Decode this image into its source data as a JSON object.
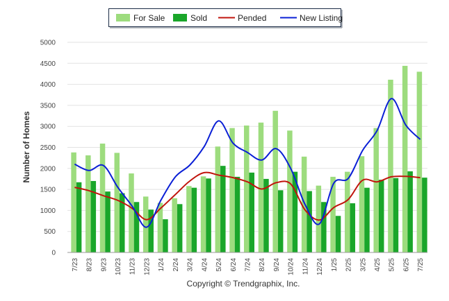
{
  "chart_data": {
    "type": "bar",
    "title": "",
    "xlabel": "",
    "ylabel": "Number of Homes",
    "ylim": [
      0,
      5000
    ],
    "yticks": [
      0,
      500,
      1000,
      1500,
      2000,
      2500,
      3000,
      3500,
      4000,
      4500,
      5000
    ],
    "grid": true,
    "legend_position": "top-center",
    "categories": [
      "7/23",
      "8/23",
      "9/23",
      "10/23",
      "11/23",
      "12/23",
      "1/24",
      "2/24",
      "3/24",
      "4/24",
      "5/24",
      "6/24",
      "7/24",
      "8/24",
      "9/24",
      "10/24",
      "11/24",
      "12/24",
      "1/25",
      "2/25",
      "3/25",
      "4/25",
      "5/25",
      "6/25",
      "7/25"
    ],
    "series": [
      {
        "name": "For Sale",
        "kind": "bar",
        "color": "#9ddc7e",
        "values": [
          2380,
          2310,
          2590,
          2370,
          1880,
          1330,
          1180,
          1290,
          1580,
          1810,
          2520,
          2960,
          3020,
          3090,
          3370,
          2900,
          2280,
          1590,
          1800,
          1920,
          2290,
          2960,
          4110,
          4440,
          4300
        ]
      },
      {
        "name": "Sold",
        "kind": "bar",
        "color": "#1aa62a",
        "values": [
          1670,
          1700,
          1450,
          1410,
          1200,
          1020,
          790,
          1150,
          1540,
          1760,
          2060,
          1800,
          1900,
          1750,
          1480,
          1920,
          1460,
          1200,
          870,
          1170,
          1540,
          1730,
          1770,
          1930,
          1780
        ]
      },
      {
        "name": "Pended",
        "kind": "line",
        "color": "#c0140c",
        "values": [
          1550,
          1470,
          1350,
          1240,
          1050,
          780,
          1060,
          1380,
          1700,
          1900,
          1840,
          1780,
          1680,
          1510,
          1660,
          1630,
          1010,
          770,
          1070,
          1260,
          1720,
          1680,
          1800,
          1810,
          1780
        ]
      },
      {
        "name": "New Listing",
        "kind": "line",
        "color": "#0a1fd6",
        "values": [
          2100,
          1950,
          2070,
          1550,
          1100,
          600,
          1250,
          1800,
          2080,
          2520,
          3130,
          2600,
          2380,
          2200,
          2470,
          2000,
          1140,
          680,
          1650,
          1760,
          2430,
          2900,
          3660,
          3030,
          2690
        ]
      }
    ]
  },
  "footer": {
    "copyright": "Copyright © Trendgraphix, Inc."
  }
}
